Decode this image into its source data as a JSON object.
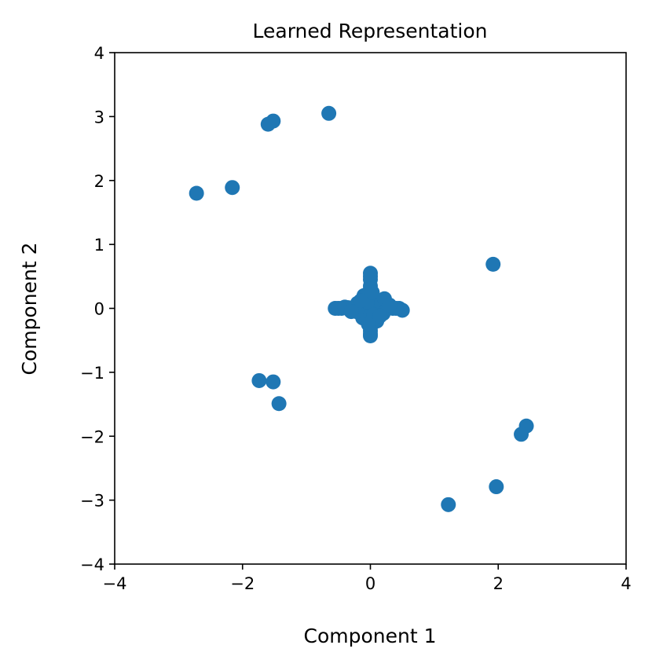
{
  "chart_data": {
    "type": "scatter",
    "title": "Learned Representation",
    "xlabel": "Component 1",
    "ylabel": "Component 2",
    "xlim": [
      -4,
      4
    ],
    "ylim": [
      -4,
      4
    ],
    "xticks": [
      -4,
      -2,
      0,
      2,
      4
    ],
    "yticks": [
      -4,
      -3,
      -2,
      -1,
      0,
      1,
      2,
      3,
      4
    ],
    "xtick_labels": [
      "−4",
      "−2",
      "0",
      "2",
      "4"
    ],
    "ytick_labels": [
      "−4",
      "−3",
      "−2",
      "−1",
      "0",
      "1",
      "2",
      "3",
      "4"
    ],
    "grid": false,
    "marker_color": "#1f77b4",
    "series": [
      {
        "x": [
          -0.65,
          -1.52,
          -1.6,
          -2.72,
          -2.16,
          1.92,
          -1.74,
          -1.52,
          -1.43,
          2.44,
          2.36,
          1.97,
          1.22,
          0.0,
          0.0,
          0.0,
          0.0,
          0.0,
          0.0,
          0.0,
          0.0,
          0.0,
          0.0,
          0.0,
          0.0,
          0.0,
          0.0,
          0.0,
          -0.08,
          0.08,
          -0.16,
          0.16,
          -0.25,
          0.25,
          -0.35,
          0.35,
          -0.45,
          0.45,
          -0.55,
          0.5,
          -0.5,
          0.4,
          -0.4,
          -0.12,
          0.12,
          -0.2,
          0.2,
          -0.1,
          0.1,
          -0.05,
          0.05,
          0.22,
          -0.22,
          0.03,
          -0.03,
          0.15,
          -0.15,
          0.3,
          -0.3
        ],
        "y": [
          3.05,
          2.93,
          2.88,
          1.8,
          1.89,
          0.69,
          -1.13,
          -1.15,
          -1.49,
          -1.84,
          -1.97,
          -2.79,
          -3.07,
          0.55,
          0.45,
          0.35,
          0.25,
          0.15,
          0.05,
          -0.05,
          -0.15,
          -0.25,
          -0.35,
          -0.43,
          0.5,
          0.3,
          -0.3,
          -0.4,
          0.0,
          0.0,
          0.0,
          0.0,
          0.0,
          0.0,
          0.01,
          0.0,
          0.0,
          0.0,
          0.0,
          -0.03,
          0.0,
          0.0,
          0.02,
          -0.15,
          0.12,
          0.08,
          -0.08,
          0.2,
          -0.2,
          0.1,
          -0.1,
          0.15,
          -0.05,
          0.25,
          -0.25,
          -0.12,
          0.12,
          0.05,
          -0.05
        ]
      }
    ]
  }
}
